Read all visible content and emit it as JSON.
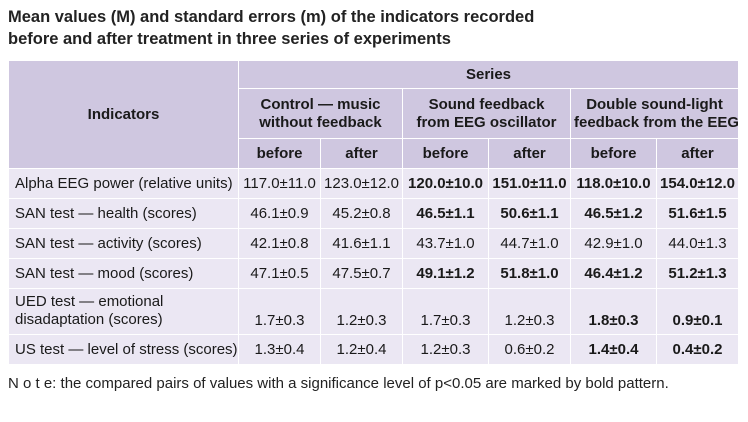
{
  "title_line1": "Mean values (M) and standard errors (m) of the indicators recorded",
  "title_line2": "before and after treatment in three series of experiments",
  "header": {
    "indicators": "Indicators",
    "series": "Series",
    "groups": [
      {
        "line1": "Control — music",
        "line2": "without feedback"
      },
      {
        "line1": "Sound feedback",
        "line2": "from EEG oscillator"
      },
      {
        "line1": "Double sound-light",
        "line2": "feedback from the EEG"
      }
    ],
    "before": "before",
    "after": "after"
  },
  "rows": [
    {
      "label": "Alpha EEG power (relative units)",
      "label2": "",
      "cells": [
        {
          "v": "117.0±11.0",
          "b": false
        },
        {
          "v": "123.0±12.0",
          "b": false
        },
        {
          "v": "120.0±10.0",
          "b": true
        },
        {
          "v": "151.0±11.0",
          "b": true
        },
        {
          "v": "118.0±10.0",
          "b": true
        },
        {
          "v": "154.0±12.0",
          "b": true
        }
      ]
    },
    {
      "label": "SAN test — health (scores)",
      "label2": "",
      "cells": [
        {
          "v": "46.1±0.9",
          "b": false
        },
        {
          "v": "45.2±0.8",
          "b": false
        },
        {
          "v": "46.5±1.1",
          "b": true
        },
        {
          "v": "50.6±1.1",
          "b": true
        },
        {
          "v": "46.5±1.2",
          "b": true
        },
        {
          "v": "51.6±1.5",
          "b": true
        }
      ]
    },
    {
      "label": "SAN test — activity (scores)",
      "label2": "",
      "cells": [
        {
          "v": "42.1±0.8",
          "b": false
        },
        {
          "v": "41.6±1.1",
          "b": false
        },
        {
          "v": "43.7±1.0",
          "b": false
        },
        {
          "v": "44.7±1.0",
          "b": false
        },
        {
          "v": "42.9±1.0",
          "b": false
        },
        {
          "v": "44.0±1.3",
          "b": false
        }
      ]
    },
    {
      "label": "SAN test — mood (scores)",
      "label2": "",
      "cells": [
        {
          "v": "47.1±0.5",
          "b": false
        },
        {
          "v": "47.5±0.7",
          "b": false
        },
        {
          "v": "49.1±1.2",
          "b": true
        },
        {
          "v": "51.8±1.0",
          "b": true
        },
        {
          "v": "46.4±1.2",
          "b": true
        },
        {
          "v": "51.2±1.3",
          "b": true
        }
      ]
    },
    {
      "label": "UED test — emotional",
      "label2": "disadaptation (scores)",
      "cells": [
        {
          "v": "1.7±0.3",
          "b": false
        },
        {
          "v": "1.2±0.3",
          "b": false
        },
        {
          "v": "1.7±0.3",
          "b": false
        },
        {
          "v": "1.2±0.3",
          "b": false
        },
        {
          "v": "1.8±0.3",
          "b": true
        },
        {
          "v": "0.9±0.1",
          "b": true
        }
      ]
    },
    {
      "label": "US test — level of stress (scores)",
      "label2": "",
      "cells": [
        {
          "v": "1.3±0.4",
          "b": false
        },
        {
          "v": "1.2±0.4",
          "b": false
        },
        {
          "v": "1.2±0.3",
          "b": false
        },
        {
          "v": "0.6±0.2",
          "b": false
        },
        {
          "v": "1.4±0.4",
          "b": true
        },
        {
          "v": "0.4±0.2",
          "b": true
        }
      ]
    }
  ],
  "note": "N o t e: the compared pairs of values with a significance level of p<0.05 are marked by bold pattern."
}
